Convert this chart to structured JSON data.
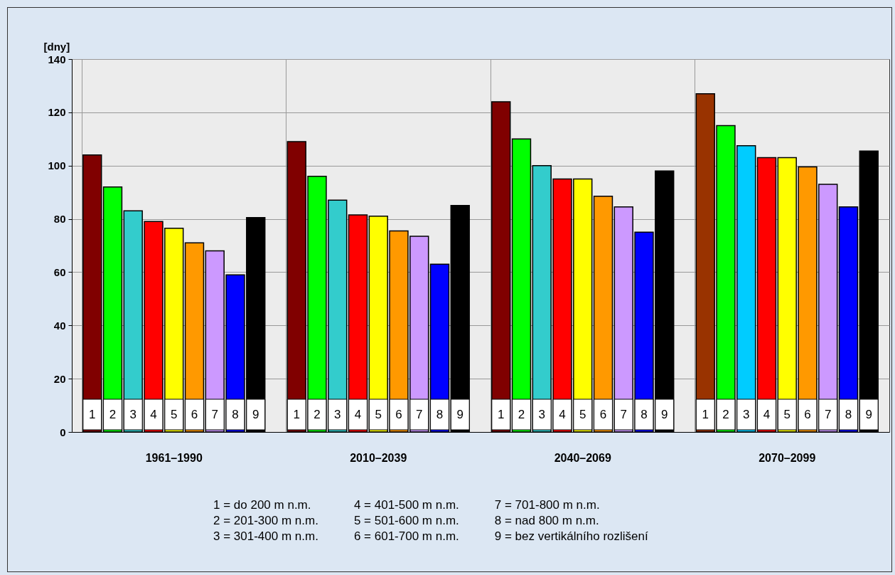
{
  "chart_data": {
    "type": "bar",
    "ylabel": "[dny]",
    "categories": [
      "1961–1990",
      "2010–2039",
      "2040–2069",
      "2070–2099"
    ],
    "series": [
      {
        "name": "1",
        "colors": [
          "#800000",
          "#800000",
          "#800000",
          "#993300"
        ],
        "values": [
          104,
          109,
          124,
          127
        ]
      },
      {
        "name": "2",
        "color": "#00ff00",
        "values": [
          92,
          96,
          110,
          115
        ]
      },
      {
        "name": "3",
        "colors": [
          "#33cccc",
          "#33cccc",
          "#33cccc",
          "#00ccff"
        ],
        "values": [
          83,
          87,
          100,
          107.5
        ]
      },
      {
        "name": "4",
        "color": "#ff0000",
        "values": [
          79,
          81.5,
          95,
          103
        ]
      },
      {
        "name": "5",
        "color": "#ffff00",
        "values": [
          76.5,
          81,
          95,
          103
        ]
      },
      {
        "name": "6",
        "color": "#ff9900",
        "values": [
          71,
          75.5,
          88.5,
          99.5
        ]
      },
      {
        "name": "7",
        "color": "#cc99ff",
        "values": [
          68,
          73.5,
          84.5,
          93
        ]
      },
      {
        "name": "8",
        "color": "#0000ff",
        "values": [
          59,
          63,
          75,
          84.5
        ]
      },
      {
        "name": "9",
        "color": "#000000",
        "values": [
          80.5,
          85,
          98,
          105.5
        ]
      }
    ],
    "ylim": [
      0,
      140
    ],
    "yticks": [
      0,
      20,
      40,
      60,
      80,
      100,
      120,
      140
    ],
    "grid": true,
    "annotations": [
      "1 = do 200 m n.m.",
      "2 = 201-300 m n.m.",
      "3 = 301-400 m n.m.",
      "4 = 401-500 m n.m.",
      "5 = 501-600 m n.m.",
      "6 = 601-700 m n.m.",
      "7 = 701-800 m n.m.",
      "8 = nad 800 m n.m.",
      "9 = bez vertikálního rozlišení"
    ]
  }
}
